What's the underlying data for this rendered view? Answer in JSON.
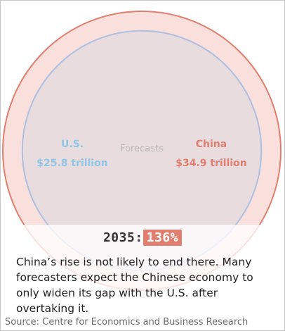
{
  "chart_data": {
    "type": "proportional-circles",
    "annotation": "Forecasts",
    "series": [
      {
        "name": "U.S.",
        "label": "$25.8 trillion",
        "value": 25.8,
        "unit": "trillion USD",
        "color": "#8fc6e6"
      },
      {
        "name": "China",
        "label": "$34.9 trillion",
        "value": 34.9,
        "unit": "trillion USD",
        "color": "#e07f6f"
      }
    ],
    "year": "2035",
    "ratio_label": "136%",
    "ratio_value": 136
  },
  "caption": {
    "year_prefix": "2035:",
    "ratio": "136%",
    "text": "China’s rise is not likely to end there. Many forecasters expect the Chinese economy to only widen its gap with the U.S. after overtaking it."
  },
  "source": "Source: Centre for Economics and Business Research",
  "colors": {
    "china_fill": "#f9e0dc",
    "china_stroke": "#e07f6f",
    "us_fill": "#e9dcdf",
    "us_stroke": "#aebfdf",
    "annotation": "#b8b8b8",
    "badge": "#e07f6f"
  }
}
